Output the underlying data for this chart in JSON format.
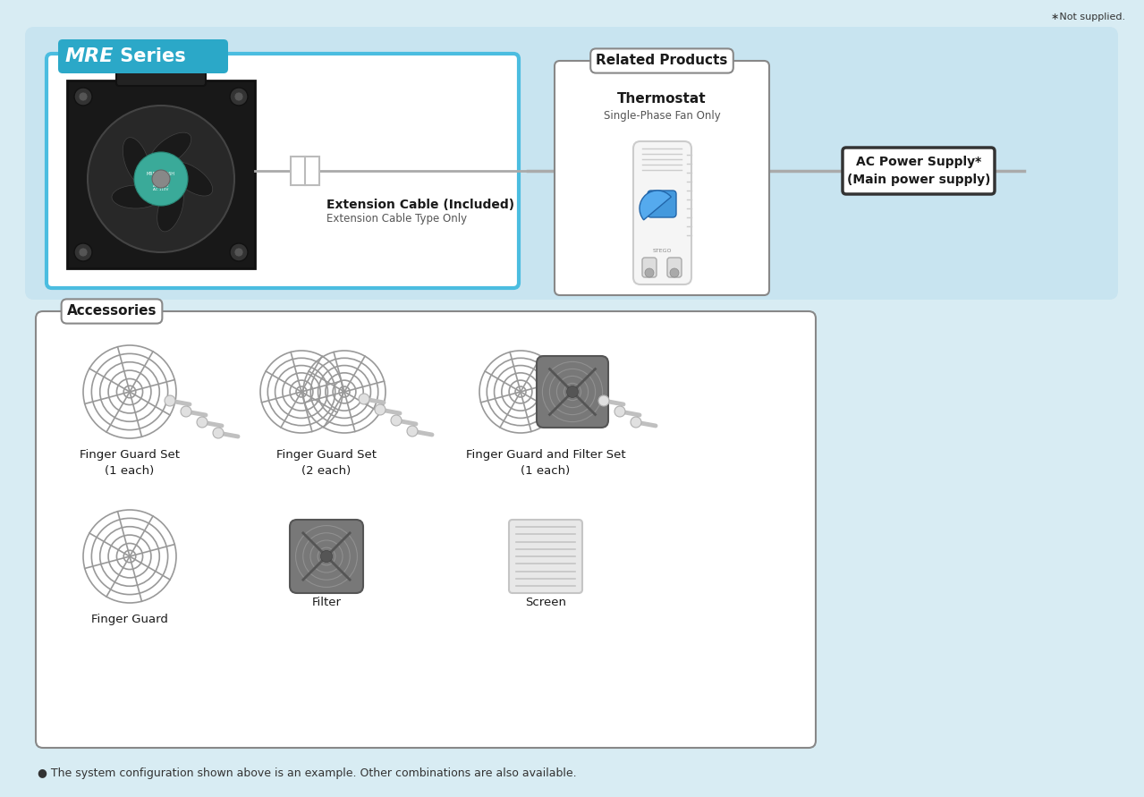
{
  "bg_color": "#d8ecf3",
  "white": "#ffffff",
  "not_supplied_text": "∗Not supplied.",
  "mre_label": "MRE",
  "series_label": " Series",
  "mre_bg": "#2ba8c8",
  "mre_box_border": "#4bbde0",
  "related_products_label": "Related Products",
  "thermostat_label": "Thermostat",
  "thermostat_sub": "Single-Phase Fan Only",
  "ac_power_label": "AC Power Supply*\n(Main power supply)",
  "extension_cable_label": "Extension Cable (Included)",
  "extension_cable_sub": "Extension Cable Type Only",
  "accessories_label": "Accessories",
  "accessory_items": [
    {
      "label": "Finger Guard Set\n(1 each)"
    },
    {
      "label": "Finger Guard Set\n(2 each)"
    },
    {
      "label": "Finger Guard and Filter Set\n(1 each)"
    },
    {
      "label": "Finger Guard"
    },
    {
      "label": "Filter"
    },
    {
      "label": "Screen"
    }
  ],
  "footer_text": "● The system configuration shown above is an example. Other combinations are also available.",
  "gray_line_color": "#aaaaaa",
  "box_border_color": "#888888"
}
